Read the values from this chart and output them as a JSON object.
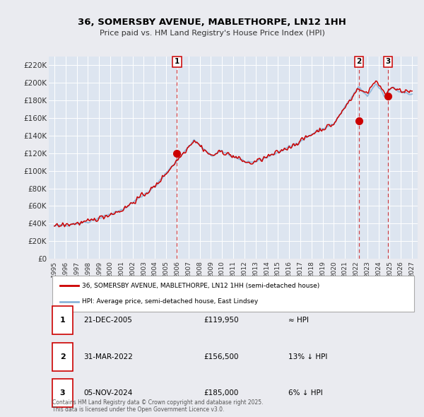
{
  "title": "36, SOMERSBY AVENUE, MABLETHORPE, LN12 1HH",
  "subtitle": "Price paid vs. HM Land Registry's House Price Index (HPI)",
  "xlim": [
    1994.5,
    2027.5
  ],
  "ylim": [
    0,
    230000
  ],
  "yticks": [
    0,
    20000,
    40000,
    60000,
    80000,
    100000,
    120000,
    140000,
    160000,
    180000,
    200000,
    220000
  ],
  "ytick_labels": [
    "£0",
    "£20K",
    "£40K",
    "£60K",
    "£80K",
    "£100K",
    "£120K",
    "£140K",
    "£160K",
    "£180K",
    "£200K",
    "£220K"
  ],
  "xticks": [
    1995,
    1996,
    1997,
    1998,
    1999,
    2000,
    2001,
    2002,
    2003,
    2004,
    2005,
    2006,
    2007,
    2008,
    2009,
    2010,
    2011,
    2012,
    2013,
    2014,
    2015,
    2016,
    2017,
    2018,
    2019,
    2020,
    2021,
    2022,
    2023,
    2024,
    2025,
    2026,
    2027
  ],
  "background_color": "#eaebf0",
  "plot_bg_color": "#dde5f0",
  "grid_color": "#ffffff",
  "hpi_color": "#8ab4d8",
  "price_color": "#cc0000",
  "sale_marker_color": "#cc0000",
  "sale_dates": [
    2005.97,
    2022.25,
    2024.84
  ],
  "sale_prices": [
    119950,
    156500,
    185000
  ],
  "sale_labels": [
    "1",
    "2",
    "3"
  ],
  "vline_color": "#cc0000",
  "legend_label_price": "36, SOMERSBY AVENUE, MABLETHORPE, LN12 1HH (semi-detached house)",
  "legend_label_hpi": "HPI: Average price, semi-detached house, East Lindsey",
  "table_rows": [
    {
      "label": "1",
      "date": "21-DEC-2005",
      "price": "£119,950",
      "hpi": "≈ HPI"
    },
    {
      "label": "2",
      "date": "31-MAR-2022",
      "price": "£156,500",
      "hpi": "13% ↓ HPI"
    },
    {
      "label": "3",
      "date": "05-NOV-2024",
      "price": "£185,000",
      "hpi": "6% ↓ HPI"
    }
  ],
  "footnote": "Contains HM Land Registry data © Crown copyright and database right 2025.\nThis data is licensed under the Open Government Licence v3.0."
}
